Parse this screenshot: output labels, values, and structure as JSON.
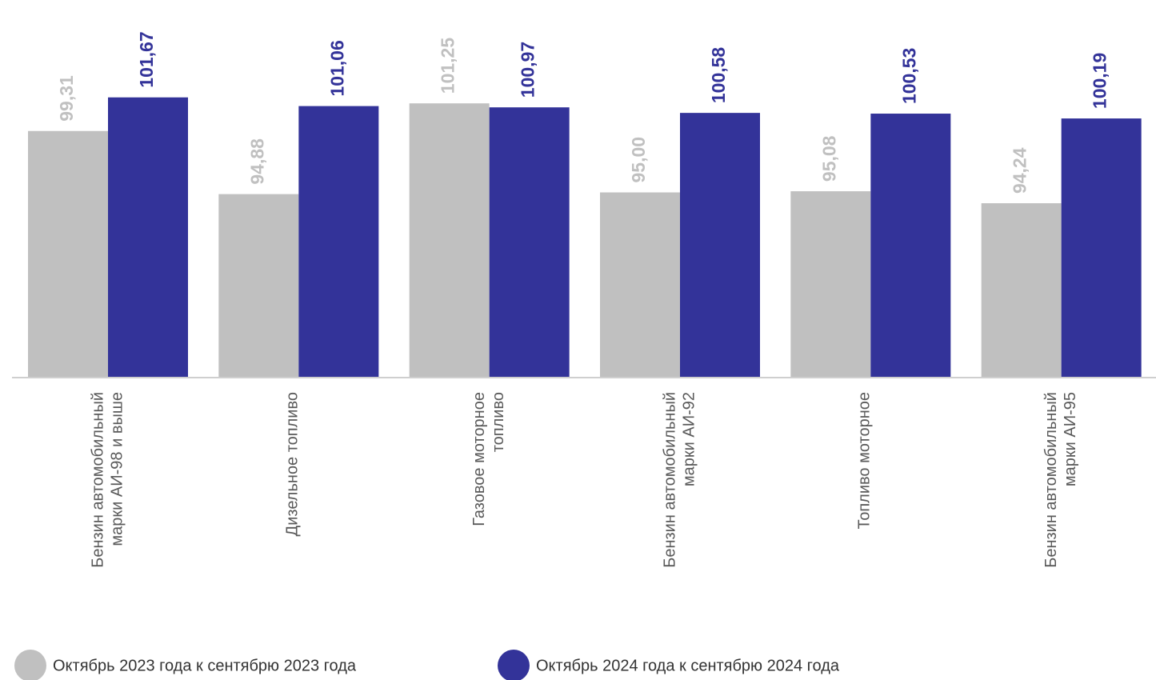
{
  "chart_data": {
    "type": "bar",
    "categories": [
      [
        "Бензин автомобильный",
        "марки АИ-98 и выше"
      ],
      [
        "Дизельное топливо"
      ],
      [
        "Газовое моторное",
        "топливо"
      ],
      [
        "Бензин автомобильный",
        "марки АИ-92"
      ],
      [
        "Топливо моторное"
      ],
      [
        "Бензин автомобильный",
        "марки АИ-95"
      ]
    ],
    "series": [
      {
        "name": "Октябрь 2023 года к сентябрю 2023 года",
        "color": "#c0c0c0",
        "values": [
          99.31,
          94.88,
          101.25,
          95.0,
          95.08,
          94.24
        ],
        "value_labels": [
          "99,31",
          "94,88",
          "101,25",
          "95,00",
          "95,08",
          "94,24"
        ]
      },
      {
        "name": "Октябрь 2024 года к сентябрю 2024 года",
        "color": "#333399",
        "values": [
          101.67,
          101.06,
          100.97,
          100.58,
          100.53,
          100.19
        ],
        "value_labels": [
          "101,67",
          "101,06",
          "100,97",
          "100,58",
          "100,53",
          "100,19"
        ]
      }
    ],
    "ylim": [
      82,
      108
    ]
  }
}
